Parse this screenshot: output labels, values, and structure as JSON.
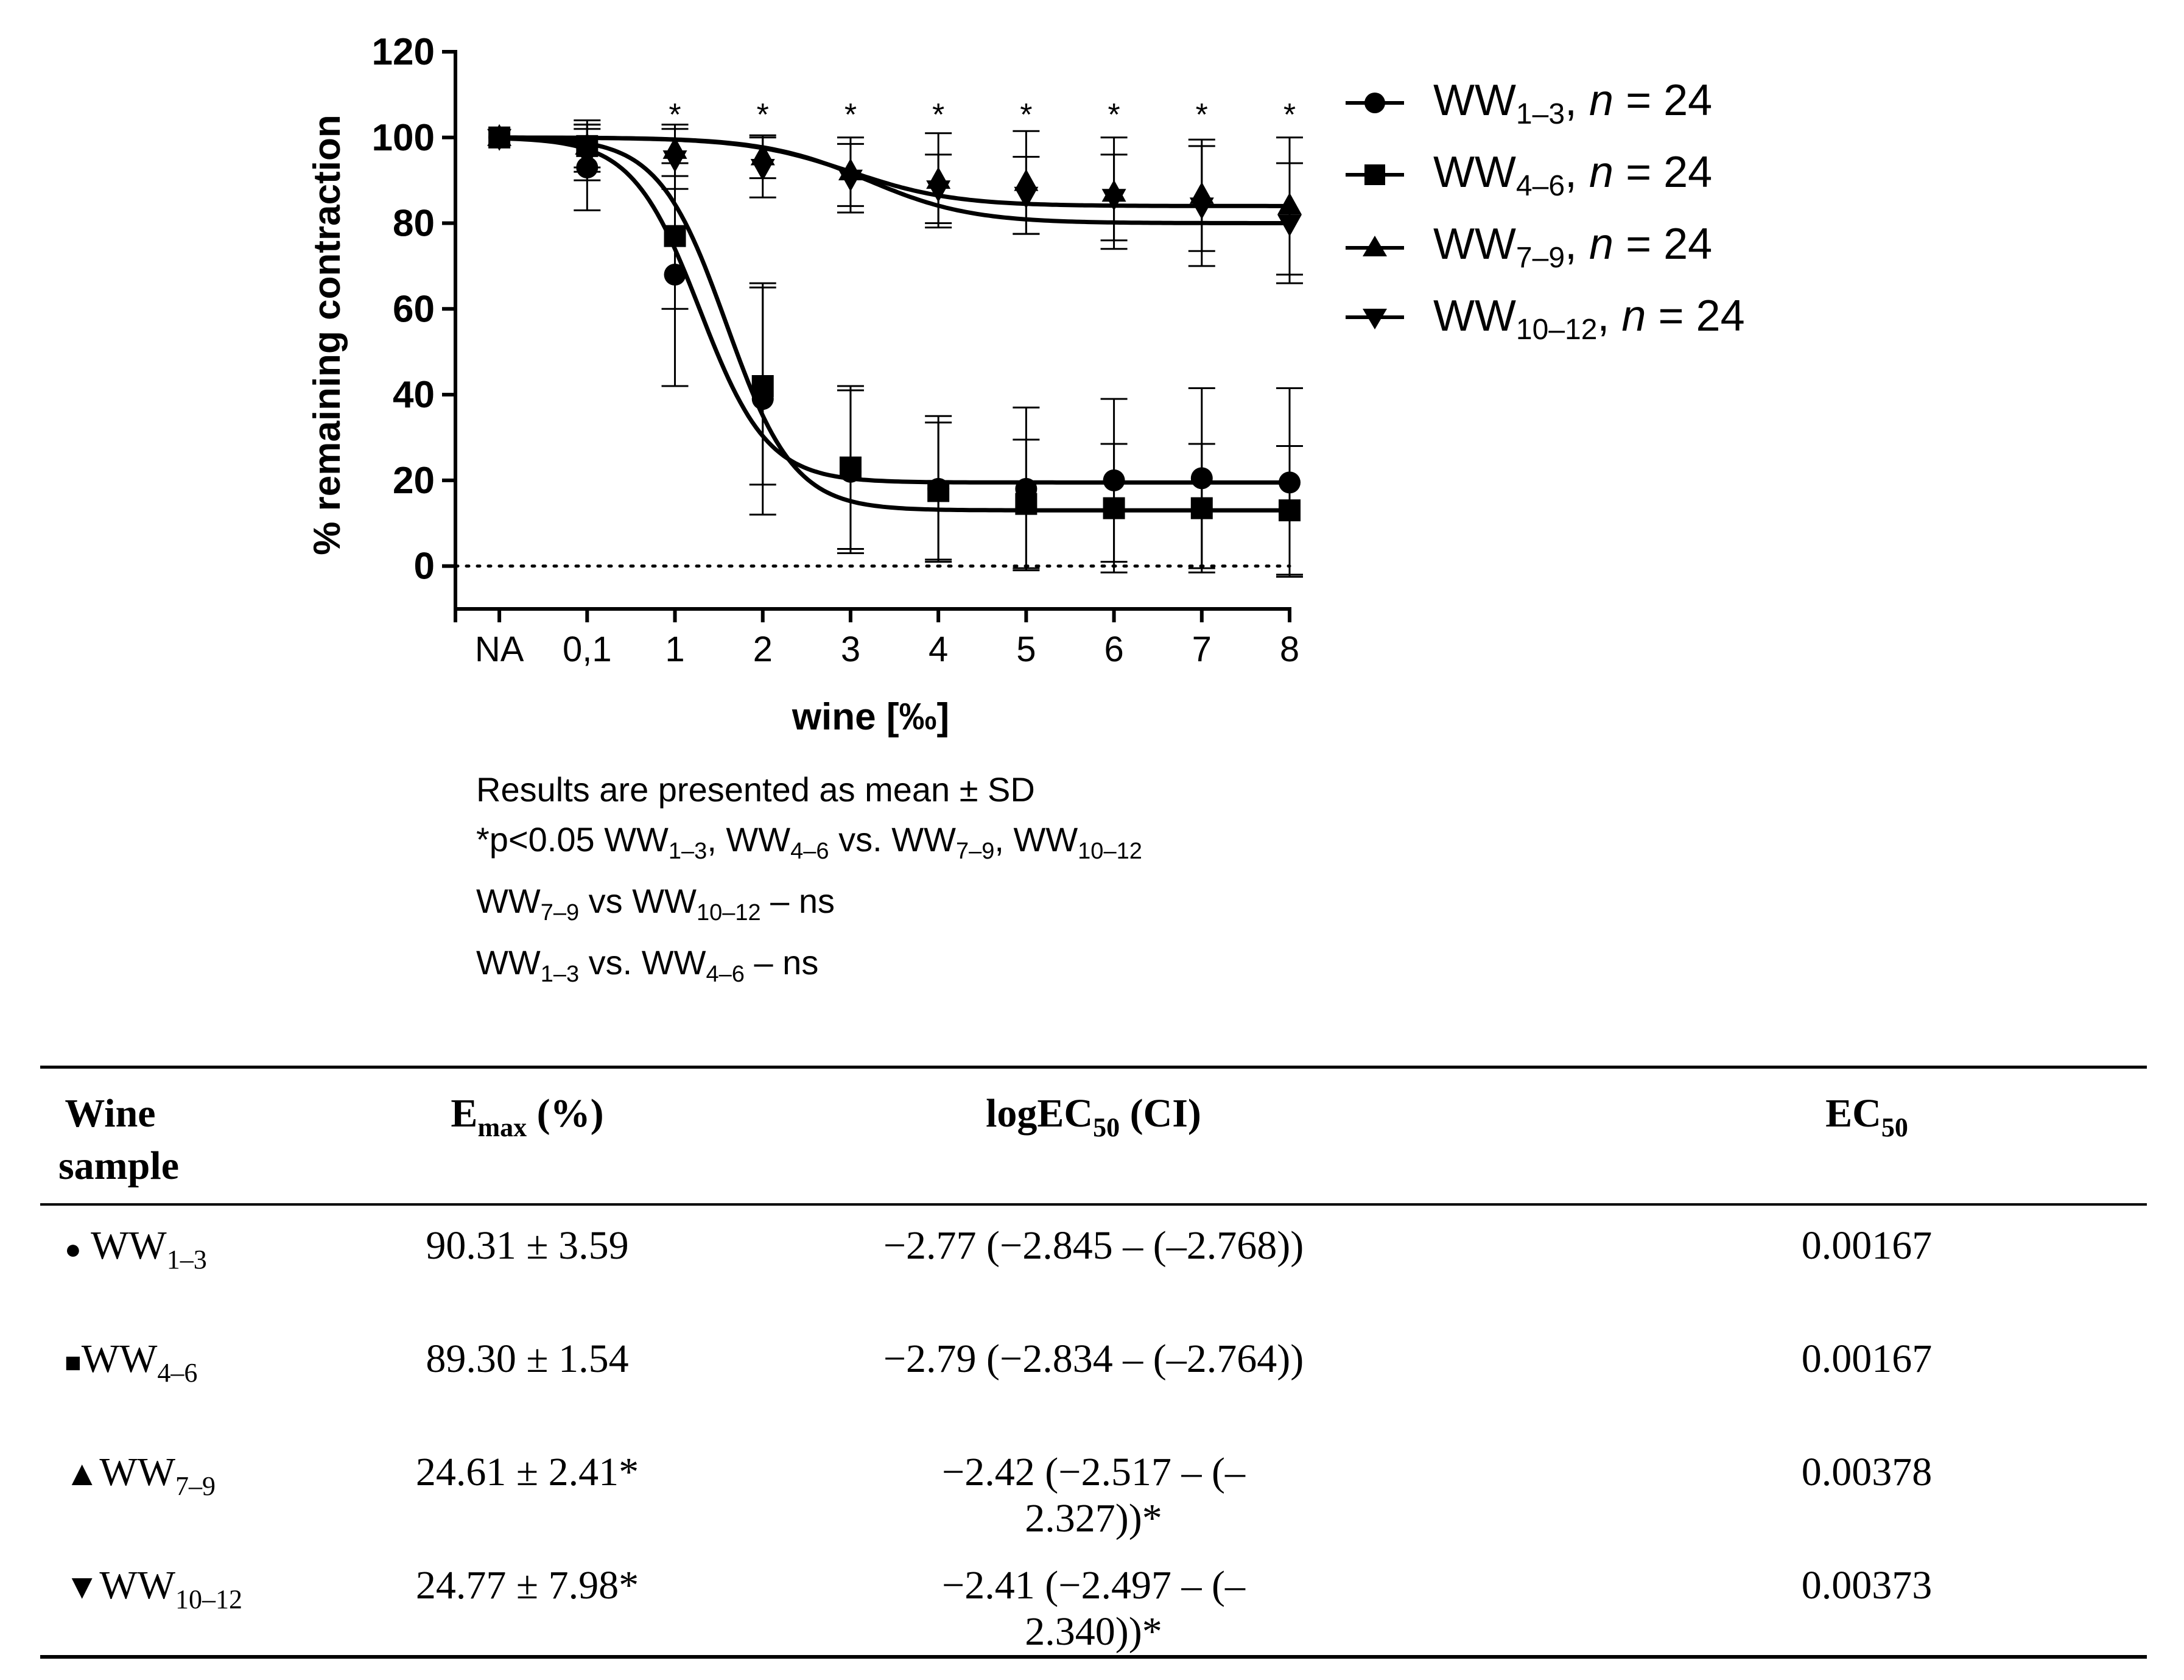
{
  "chart_data": {
    "type": "line",
    "title": "",
    "xlabel": "wine [‰]",
    "ylabel": "% remaining contraction",
    "categories": [
      "NA",
      "0,1",
      "1",
      "2",
      "3",
      "4",
      "5",
      "6",
      "7",
      "8"
    ],
    "yticks": [
      "0",
      "20",
      "40",
      "60",
      "80",
      "100",
      "120"
    ],
    "ylim": [
      -10,
      120
    ],
    "reference_line": {
      "y": 0,
      "style": "dotted"
    },
    "significance_marks": [
      {
        "category": "1",
        "label": "*"
      },
      {
        "category": "2",
        "label": "*"
      },
      {
        "category": "3",
        "label": "*"
      },
      {
        "category": "4",
        "label": "*"
      },
      {
        "category": "5",
        "label": "*"
      },
      {
        "category": "6",
        "label": "*"
      },
      {
        "category": "7",
        "label": "*"
      },
      {
        "category": "8",
        "label": "*"
      }
    ],
    "series": [
      {
        "name": "WW1–3",
        "n": "n = 24",
        "marker": "circle",
        "values": [
          100,
          93,
          68,
          39,
          22,
          18,
          18,
          20,
          20.5,
          19.5
        ],
        "sd": [
          0,
          10,
          26,
          27,
          19,
          17,
          19,
          19,
          21,
          22
        ]
      },
      {
        "name": "WW4–6",
        "n": "n = 24",
        "marker": "square",
        "values": [
          100,
          98,
          77,
          42,
          23,
          17.5,
          14.5,
          13.5,
          13.5,
          13
        ],
        "sd": [
          0,
          5,
          17,
          23,
          19,
          16,
          15,
          15,
          15,
          15
        ]
      },
      {
        "name": "WW7–9",
        "n": "n = 24",
        "marker": "triangle-up",
        "values": [
          100,
          98,
          97,
          95.5,
          92,
          90,
          89.5,
          87,
          86.5,
          84
        ],
        "sd": [
          0,
          6,
          6,
          5,
          8,
          11,
          12,
          13,
          13,
          16
        ]
      },
      {
        "name": "WW10–12",
        "n": "n = 24",
        "marker": "triangle-down",
        "values": [
          100,
          96,
          95,
          93,
          90.5,
          88,
          86.5,
          86,
          84,
          80
        ],
        "sd": [
          0,
          6,
          7,
          7,
          8,
          8,
          9,
          10,
          14,
          14
        ]
      }
    ]
  },
  "legend": [
    {
      "base": "WW",
      "sub": "1–3",
      "n_text": ", ",
      "n_italic": "n",
      "n_value": " = 24"
    },
    {
      "base": "WW",
      "sub": "4–6",
      "n_text": ", ",
      "n_italic": "n",
      "n_value": " = 24"
    },
    {
      "base": "WW",
      "sub": "7–9",
      "n_text": ", ",
      "n_italic": "n",
      "n_value": " = 24"
    },
    {
      "base": "WW",
      "sub": "10–12",
      "n_text": ", ",
      "n_italic": "n",
      "n_value": " = 24"
    }
  ],
  "notes": {
    "line1": "Results are presented as mean ± SD",
    "line2": {
      "a": "*p<0.05 WW",
      "a_sub": "1–3",
      "b": ", WW",
      "b_sub": "4–6",
      "c": " vs. WW",
      "c_sub": "7–9",
      "d": ", WW",
      "d_sub": "10–12"
    },
    "line3": {
      "a": "WW",
      "a_sub": "7–9",
      "b": " vs WW",
      "b_sub": "10–12",
      "c": " – ns"
    },
    "line4": {
      "a": "WW",
      "a_sub": "1–3",
      "b": " vs. WW",
      "b_sub": "4–6",
      "c": " – ns"
    }
  },
  "table": {
    "headers": {
      "sample_l1": "Wine",
      "sample_l2": "sample",
      "emax": "E",
      "emax_sub": "max",
      "emax_rest": " (%)",
      "logec": "logEC",
      "logec_sub": "50",
      "logec_rest": " (CI)",
      "ec": "EC",
      "ec_sub": "50"
    },
    "rows": [
      {
        "symbol": "●",
        "name": "WW",
        "sub": "1–3",
        "emax": "90.31 ± 3.59",
        "logec50": "−2.77 (−2.845 – (–2.768))",
        "ec50": "0.00167"
      },
      {
        "symbol": "■",
        "name": "WW",
        "sub": "4–6",
        "emax": "89.30 ± 1.54",
        "logec50": "−2.79 (−2.834 – (–2.764))",
        "ec50": "0.00167"
      },
      {
        "symbol": "▲",
        "name": "WW",
        "sub": "7–9",
        "emax": "24.61 ± 2.41*",
        "logec50": "−2.42 (−2.517 – (–2.327))*",
        "ec50": "0.00378"
      },
      {
        "symbol": "▼",
        "name": "WW",
        "sub": "10–12",
        "emax": "24.77 ± 7.98*",
        "logec50": "−2.41 (−2.497 – (–2.340))*",
        "ec50": "0.00373"
      }
    ]
  }
}
